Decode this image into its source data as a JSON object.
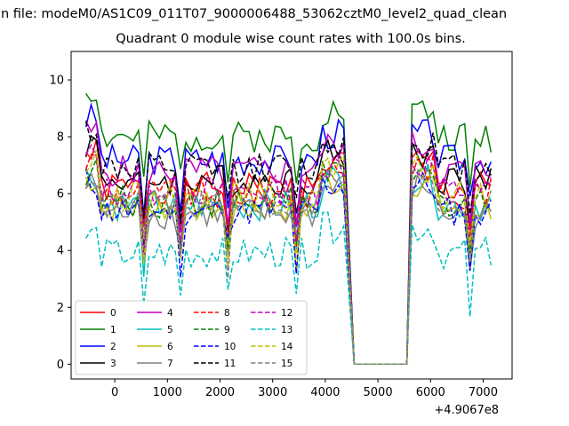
{
  "chart_data": {
    "type": "line",
    "title": "n file: modeM0/AS1C09_011T07_9000006488_53062cztM0_level2_quad_clean",
    "subtitle": "Quadrant 0 module wise count rates with 100.0s bins.",
    "xlabel": "",
    "ylabel": "",
    "x_offset_label": "+4.9067e8",
    "xlim": [
      -830,
      7550
    ],
    "ylim": [
      -0.52,
      11.0
    ],
    "x_ticks": [
      0,
      1000,
      2000,
      3000,
      4000,
      5000,
      6000,
      7000
    ],
    "x_tick_labels": [
      "0",
      "1000",
      "2000",
      "3000",
      "4000",
      "5000",
      "6000",
      "7000"
    ],
    "y_ticks": [
      0,
      2,
      4,
      6,
      8,
      10
    ],
    "y_tick_labels": [
      "0",
      "2",
      "4",
      "6",
      "8",
      "10"
    ],
    "legend_position": "lower-left",
    "legend_columns": 4,
    "grid": false,
    "series": [
      {
        "name": "0",
        "color": "#ff0000",
        "dash": "solid",
        "base": 6.2,
        "seed": 1
      },
      {
        "name": "1",
        "color": "#008000",
        "dash": "solid",
        "base": 8.0,
        "seed": 2
      },
      {
        "name": "2",
        "color": "#0000ff",
        "dash": "solid",
        "base": 7.2,
        "seed": 3
      },
      {
        "name": "3",
        "color": "#000000",
        "dash": "solid",
        "base": 6.5,
        "seed": 4
      },
      {
        "name": "4",
        "color": "#bf00bf",
        "dash": "solid",
        "base": 6.8,
        "seed": 5
      },
      {
        "name": "5",
        "color": "#00bfbf",
        "dash": "solid",
        "base": 5.6,
        "seed": 6
      },
      {
        "name": "6",
        "color": "#bfbf00",
        "dash": "solid",
        "base": 5.5,
        "seed": 7
      },
      {
        "name": "7",
        "color": "#808080",
        "dash": "solid",
        "base": 5.3,
        "seed": 8
      },
      {
        "name": "8",
        "color": "#ff0000",
        "dash": "dashed",
        "base": 6.0,
        "seed": 9
      },
      {
        "name": "9",
        "color": "#008000",
        "dash": "dashed",
        "base": 5.7,
        "seed": 10
      },
      {
        "name": "10",
        "color": "#0000ff",
        "dash": "dashed",
        "base": 5.4,
        "seed": 11
      },
      {
        "name": "11",
        "color": "#000000",
        "dash": "dashed",
        "base": 6.9,
        "seed": 12
      },
      {
        "name": "12",
        "color": "#bf00bf",
        "dash": "dashed",
        "base": 6.1,
        "seed": 13
      },
      {
        "name": "13",
        "color": "#00bfbf",
        "dash": "dashed",
        "base": 3.9,
        "seed": 14
      },
      {
        "name": "14",
        "color": "#bfbf00",
        "dash": "dashed",
        "base": 5.9,
        "seed": 15
      },
      {
        "name": "15",
        "color": "#808080",
        "dash": "dashed",
        "base": 5.6,
        "seed": 16
      }
    ],
    "time_segments": [
      {
        "start": -550,
        "end": 4350,
        "step": 100
      },
      {
        "start": 4550,
        "end": 5550,
        "step": 100,
        "flat": 0
      },
      {
        "start": 5650,
        "end": 7150,
        "step": 100
      }
    ]
  }
}
